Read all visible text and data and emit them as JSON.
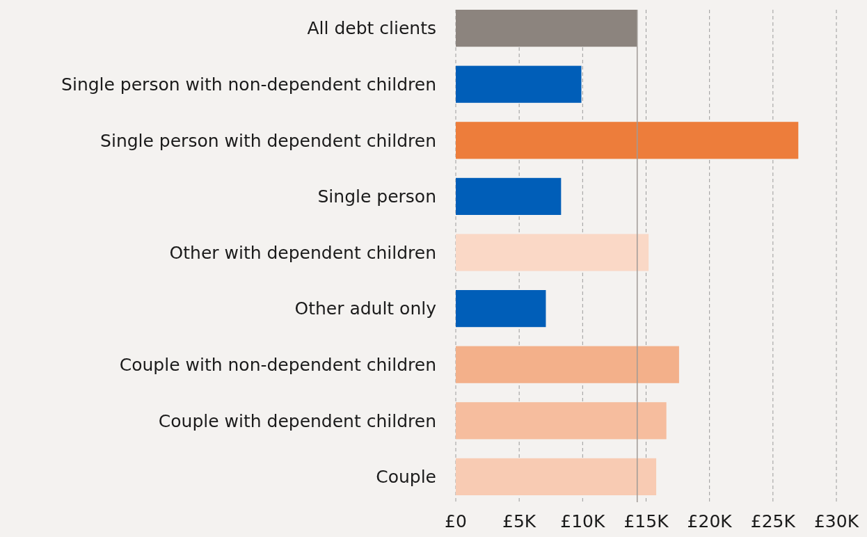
{
  "chart_data": {
    "type": "bar",
    "orientation": "horizontal",
    "categories": [
      "All debt clients",
      "Single person with non-dependent children",
      "Single person with dependent children",
      "Single person",
      "Other with dependent children",
      "Other adult only",
      "Couple with non-dependent children",
      "Couple with dependent children",
      "Couple"
    ],
    "values": [
      14.3,
      9.9,
      27.0,
      8.3,
      15.2,
      7.1,
      17.6,
      16.6,
      15.8
    ],
    "colors": [
      "#8c847e",
      "#005eb8",
      "#ed7d3b",
      "#005eb8",
      "#fad8c6",
      "#005eb8",
      "#f3b08a",
      "#f6bd9e",
      "#f8cbb3"
    ],
    "xlim": [
      0,
      30
    ],
    "xticks": [
      {
        "value": 0,
        "label": "£0"
      },
      {
        "value": 5,
        "label": "£5K"
      },
      {
        "value": 10,
        "label": "£10K"
      },
      {
        "value": 15,
        "label": "£15K"
      },
      {
        "value": 20,
        "label": "£20K"
      },
      {
        "value": 25,
        "label": "£25K"
      },
      {
        "value": 30,
        "label": "£30K"
      }
    ],
    "grid": "x",
    "ref_lines": [
      {
        "axis": "x",
        "value": 14.3,
        "color": "#a09a96",
        "line_style": "solid"
      }
    ]
  }
}
